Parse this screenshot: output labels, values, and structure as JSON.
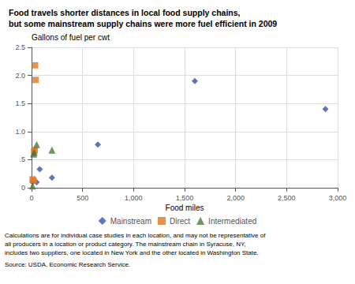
{
  "chart_data": {
    "type": "scatter",
    "title": [
      "Food travels shorter distances in local food supply chains,",
      "but some mainstream supply chains were more fuel efficient in 2009"
    ],
    "ylabel": "Gallons of fuel per cwt",
    "xlabel": "Food miles",
    "xlim": [
      0,
      3000
    ],
    "ylim": [
      0,
      2.5
    ],
    "xticks": [
      0,
      500,
      {
        "value": 1000,
        "label": "1,000"
      },
      {
        "value": 1500,
        "label": "1,500"
      },
      {
        "value": 2000,
        "label": "2,000"
      },
      {
        "value": 2500,
        "label": "2,500"
      },
      {
        "value": 3000,
        "label": "3,000"
      }
    ],
    "yticks": [
      0,
      {
        "value": 0.5,
        "label": ".5"
      },
      {
        "value": 1.0,
        "label": "1.0"
      },
      1.5,
      {
        "value": 2.0,
        "label": "2.0"
      },
      2.5
    ],
    "grid": true,
    "legend": "bottom",
    "series": [
      {
        "name": "Mainstream",
        "color": "#3355a0",
        "marker": "diamond",
        "x": [
          10,
          50,
          80,
          200,
          650,
          1600,
          2880
        ],
        "values": [
          0.1,
          0.1,
          0.33,
          0.18,
          0.77,
          1.9,
          1.4
        ]
      },
      {
        "name": "Direct",
        "color": "#e07820",
        "marker": "square",
        "x": [
          10,
          20,
          25,
          30,
          35,
          40
        ],
        "values": [
          0.15,
          0.13,
          0.65,
          0.67,
          2.18,
          1.92
        ]
      },
      {
        "name": "Intermediated",
        "color": "#4a7a3a",
        "marker": "triangle",
        "x": [
          10,
          20,
          25,
          50,
          200
        ],
        "values": [
          0.03,
          0.6,
          0.63,
          0.77,
          0.67
        ]
      }
    ],
    "annotations": [
      "Calculations are for individual case studies in each location, and may not be representative of",
      "all producers in a location or product category. The mainstream chain in Syracuse, NY,",
      "includes two suppliers, one located in New York and the other located in Washington State.",
      "Source: USDA, Economic Research Service."
    ]
  }
}
